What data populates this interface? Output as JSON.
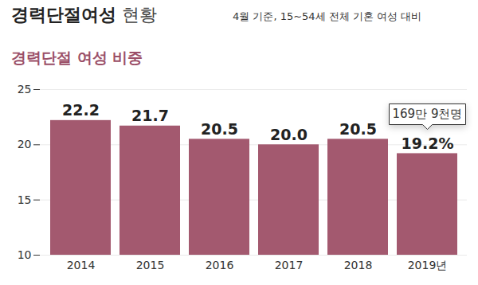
{
  "chart_data": {
    "type": "bar",
    "title": "경력단절여성 현황",
    "subtitle": "4월 기준, 15~54세 전체 기혼 여성 대비",
    "ylabel": "경력단절 여성 비중",
    "categories": [
      "2014",
      "2015",
      "2016",
      "2017",
      "2018",
      "2019년"
    ],
    "values": [
      22.2,
      21.7,
      20.5,
      20.0,
      20.5,
      19.2
    ],
    "value_labels": [
      "22.2",
      "21.7",
      "20.5",
      "20.0",
      "20.5",
      "19.2%"
    ],
    "data_labels": true,
    "color": "#a3596f",
    "ylim": [
      10,
      25
    ],
    "yticks": [
      10,
      15,
      20,
      25
    ],
    "grid": true,
    "annotations": [
      {
        "category": "2019년",
        "text": "169만 9천명"
      }
    ]
  }
}
